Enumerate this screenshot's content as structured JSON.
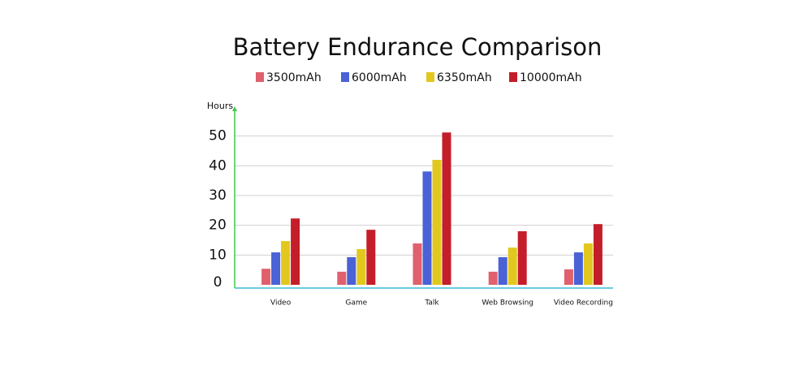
{
  "chart_data": {
    "type": "bar",
    "title": "Battery Endurance Comparison",
    "y_label": "Hours",
    "categories": [
      "Video",
      "Game",
      "Talk",
      "Web Browsing",
      "Video Recording"
    ],
    "series": [
      {
        "name": "3500mAh",
        "color": "#e0606e",
        "values": [
          5.4,
          4.4,
          13.9,
          4.4,
          5.2
        ]
      },
      {
        "name": "6000mAh",
        "color": "#4a62d6",
        "values": [
          10.9,
          9.3,
          38.1,
          9.3,
          10.9
        ]
      },
      {
        "name": "6350mAh",
        "color": "#e2c81e",
        "values": [
          14.7,
          12,
          42,
          12.5,
          13.9
        ]
      },
      {
        "name": "10000mAh",
        "color": "#c41e2a",
        "values": [
          22.3,
          18.5,
          51.2,
          18,
          20.4
        ]
      }
    ],
    "ylim": [
      0,
      60
    ],
    "yticks": [
      0,
      10,
      20,
      30,
      40,
      50
    ],
    "grid": true
  }
}
